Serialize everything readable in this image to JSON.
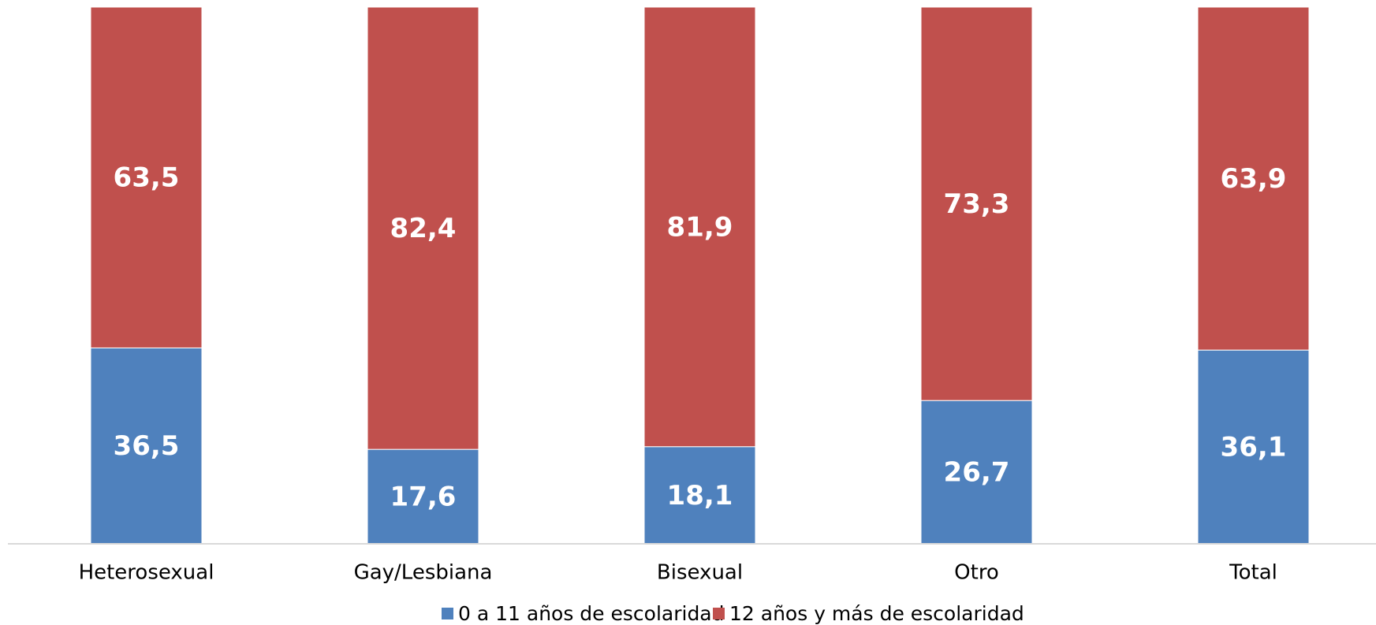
{
  "chart_data": {
    "type": "stacked_bar",
    "categories": [
      "Heterosexual",
      "Gay/Lesbiana",
      "Bisexual",
      "Otro",
      "Total"
    ],
    "series": [
      {
        "name": "0 a 11 años de escolaridad",
        "color": "#4f81bd",
        "values": [
          36.5,
          17.6,
          18.1,
          26.7,
          36.1
        ],
        "value_labels": [
          "36,5",
          "17,6",
          "18,1",
          "26,7",
          "36,1"
        ]
      },
      {
        "name": "12 años y más de escolaridad",
        "color": "#c0504d",
        "values": [
          63.5,
          82.4,
          81.9,
          73.3,
          63.9
        ],
        "value_labels": [
          "63,5",
          "82,4",
          "81,9",
          "73,3",
          "63,9"
        ]
      }
    ],
    "ylim": [
      0,
      100
    ],
    "legend": "bottom"
  }
}
